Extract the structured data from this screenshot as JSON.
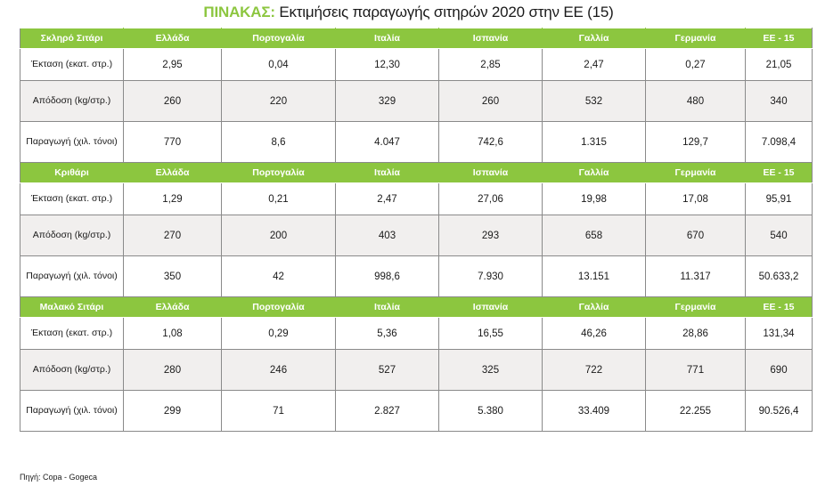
{
  "title": {
    "lead": "ΠΙΝΑΚΑΣ:",
    "text": "Εκτιμήσεις παραγωγής σιτηρών 2020 στην ΕΕ (15)"
  },
  "sections": [
    {
      "header": [
        "Σκληρό Σιτάρι",
        "Ελλάδα",
        "Πορτογαλία",
        "Ιταλία",
        "Ισπανία",
        "Γαλλία",
        "Γερμανία",
        "ΕΕ - 15"
      ],
      "rows": [
        {
          "label": "Έκταση (εκατ. στρ.)",
          "values": [
            "2,95",
            "0,04",
            "12,30",
            "2,85",
            "2,47",
            "0,27",
            "21,05"
          ]
        },
        {
          "label": "Απόδοση (kg/στρ.)",
          "values": [
            "260",
            "220",
            "329",
            "260",
            "532",
            "480",
            "340"
          ]
        },
        {
          "label": "Παραγωγή (χιλ. τόνοι)",
          "values": [
            "770",
            "8,6",
            "4.047",
            "742,6",
            "1.315",
            "129,7",
            "7.098,4"
          ]
        }
      ]
    },
    {
      "header": [
        "Κριθάρι",
        "Ελλάδα",
        "Πορτογαλία",
        "Ιταλία",
        "Ισπανία",
        "Γαλλία",
        "Γερμανία",
        "ΕΕ - 15"
      ],
      "rows": [
        {
          "label": "Έκταση (εκατ. στρ.)",
          "values": [
            "1,29",
            "0,21",
            "2,47",
            "27,06",
            "19,98",
            "17,08",
            "95,91"
          ]
        },
        {
          "label": "Απόδοση (kg/στρ.)",
          "values": [
            "270",
            "200",
            "403",
            "293",
            "658",
            "670",
            "540"
          ]
        },
        {
          "label": "Παραγωγή (χιλ. τόνοι)",
          "values": [
            "350",
            "42",
            "998,6",
            "7.930",
            "13.151",
            "11.317",
            "50.633,2"
          ]
        }
      ]
    },
    {
      "header": [
        "Μαλακό Σιτάρι",
        "Ελλάδα",
        "Πορτογαλία",
        "Ιταλία",
        "Ισπανία",
        "Γαλλία",
        "Γερμανία",
        "ΕΕ - 15"
      ],
      "rows": [
        {
          "label": "Έκταση (εκατ. στρ.)",
          "values": [
            "1,08",
            "0,29",
            "5,36",
            "16,55",
            "46,26",
            "28,86",
            "131,34"
          ]
        },
        {
          "label": "Απόδοση (kg/στρ.)",
          "values": [
            "280",
            "246",
            "527",
            "325",
            "722",
            "771",
            "690"
          ]
        },
        {
          "label": "Παραγωγή (χιλ. τόνοι)",
          "values": [
            "299",
            "71",
            "2.827",
            "5.380",
            "33.409",
            "22.255",
            "90.526,4"
          ]
        }
      ]
    }
  ],
  "source": "Πηγή: Copa - Gogeca",
  "colors": {
    "header_bg": "#8cc63f",
    "title_accent": "#8cc63f",
    "row_alt": "#f1efee"
  }
}
